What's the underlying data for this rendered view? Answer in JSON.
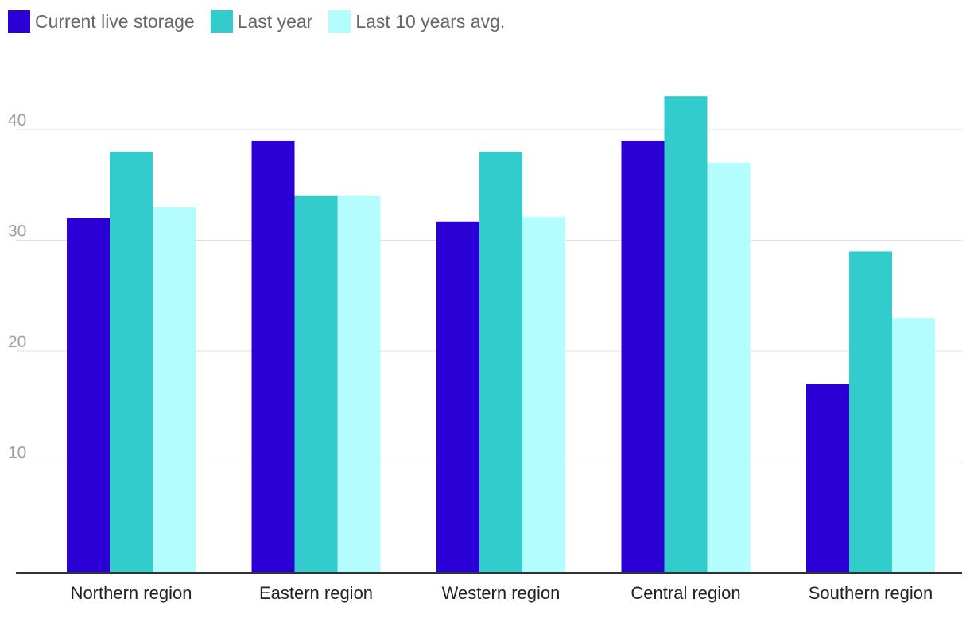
{
  "chart_data": {
    "type": "bar",
    "title": "",
    "xlabel": "",
    "ylabel": "",
    "categories": [
      "Northern region",
      "Eastern region",
      "Western region",
      "Central region",
      "Southern region"
    ],
    "series": [
      {
        "name": "Current live storage",
        "color": "#2a00d6",
        "values": [
          32,
          39,
          31.7,
          39,
          17
        ]
      },
      {
        "name": "Last year",
        "color": "#33cccc",
        "values": [
          38,
          34,
          38,
          43,
          29
        ]
      },
      {
        "name": "Last 10 years avg.",
        "color": "#b3fdff",
        "values": [
          33,
          34,
          32.1,
          37,
          23
        ]
      }
    ],
    "yticks": [
      10,
      20,
      30,
      40
    ],
    "ylim": [
      0,
      45
    ],
    "grid": true,
    "legend_position": "top-left"
  }
}
